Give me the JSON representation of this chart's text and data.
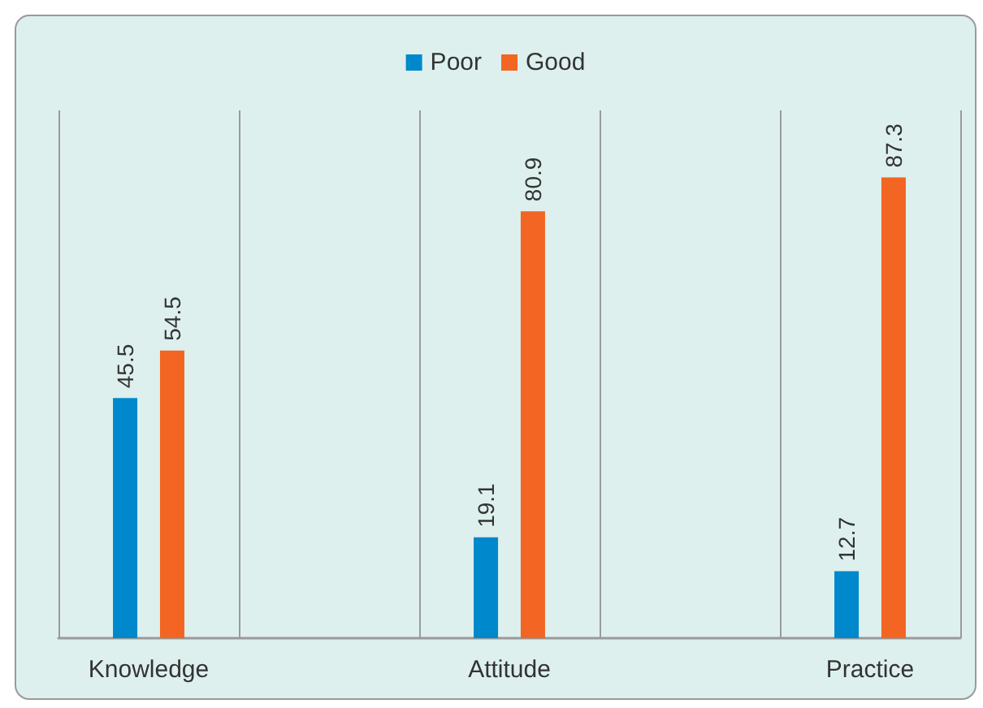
{
  "chart_data": {
    "type": "bar",
    "categories": [
      "Knowledge",
      null,
      "Attitude",
      null,
      "Practice"
    ],
    "series": [
      {
        "name": "Poor",
        "color": "#0088cc",
        "values": [
          45.5,
          null,
          19.1,
          null,
          12.7
        ]
      },
      {
        "name": "Good",
        "color": "#f26522",
        "values": [
          54.5,
          null,
          80.9,
          null,
          87.3
        ]
      }
    ],
    "data_labels": true,
    "grid": "x",
    "legend": "top",
    "tick_labels": "x"
  }
}
